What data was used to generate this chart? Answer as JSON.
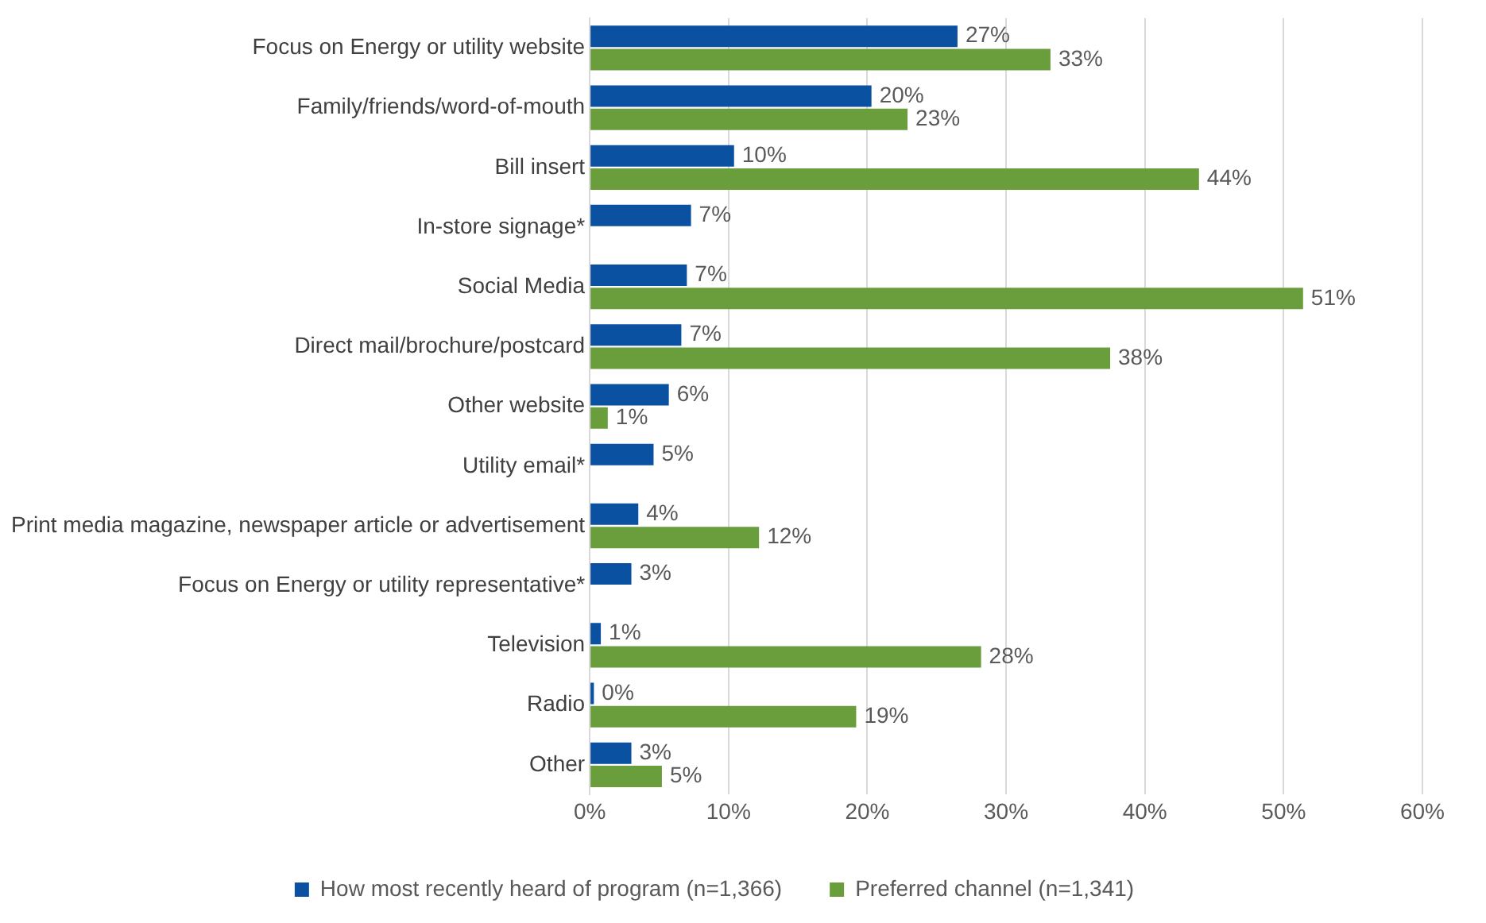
{
  "chart_data": {
    "type": "bar",
    "orientation": "horizontal",
    "categories": [
      "Focus on Energy or utility website",
      "Family/friends/word-of-mouth",
      "Bill insert",
      "In-store signage*",
      "Social Media",
      "Direct mail/brochure/postcard",
      "Other website",
      "Utility email*",
      "Print media magazine, newspaper article or advertisement",
      "Focus on Energy or utility representative*",
      "Television",
      "Radio",
      "Other"
    ],
    "series": [
      {
        "name": "How most recently heard of program (n=1,366)",
        "color": "#0a51a1",
        "values": [
          26.5,
          20.3,
          10.4,
          7.3,
          7.0,
          6.6,
          5.7,
          4.6,
          3.5,
          3.0,
          0.8,
          0.3,
          3.0
        ],
        "value_labels": [
          "27%",
          "20%",
          "10%",
          "7%",
          "7%",
          "7%",
          "6%",
          "5%",
          "4%",
          "3%",
          "1%",
          "0%",
          "3%"
        ]
      },
      {
        "name": "Preferred channel (n=1,341)",
        "color": "#6a9e3c",
        "values": [
          33.2,
          22.9,
          43.9,
          null,
          51.4,
          37.5,
          1.3,
          null,
          12.2,
          null,
          28.2,
          19.2,
          5.2
        ],
        "value_labels": [
          "33%",
          "23%",
          "44%",
          null,
          "51%",
          "38%",
          "1%",
          null,
          "12%",
          null,
          "28%",
          "19%",
          "5%"
        ]
      }
    ],
    "xlim": [
      0,
      60
    ],
    "xticks": [
      {
        "value": 0,
        "label": "0%"
      },
      {
        "value": 10,
        "label": "10%"
      },
      {
        "value": 20,
        "label": "20%"
      },
      {
        "value": 30,
        "label": "30%"
      },
      {
        "value": 40,
        "label": "40%"
      },
      {
        "value": 50,
        "label": "50%"
      },
      {
        "value": 60,
        "label": "60%"
      }
    ],
    "grid": "x",
    "legend": "bottom"
  }
}
